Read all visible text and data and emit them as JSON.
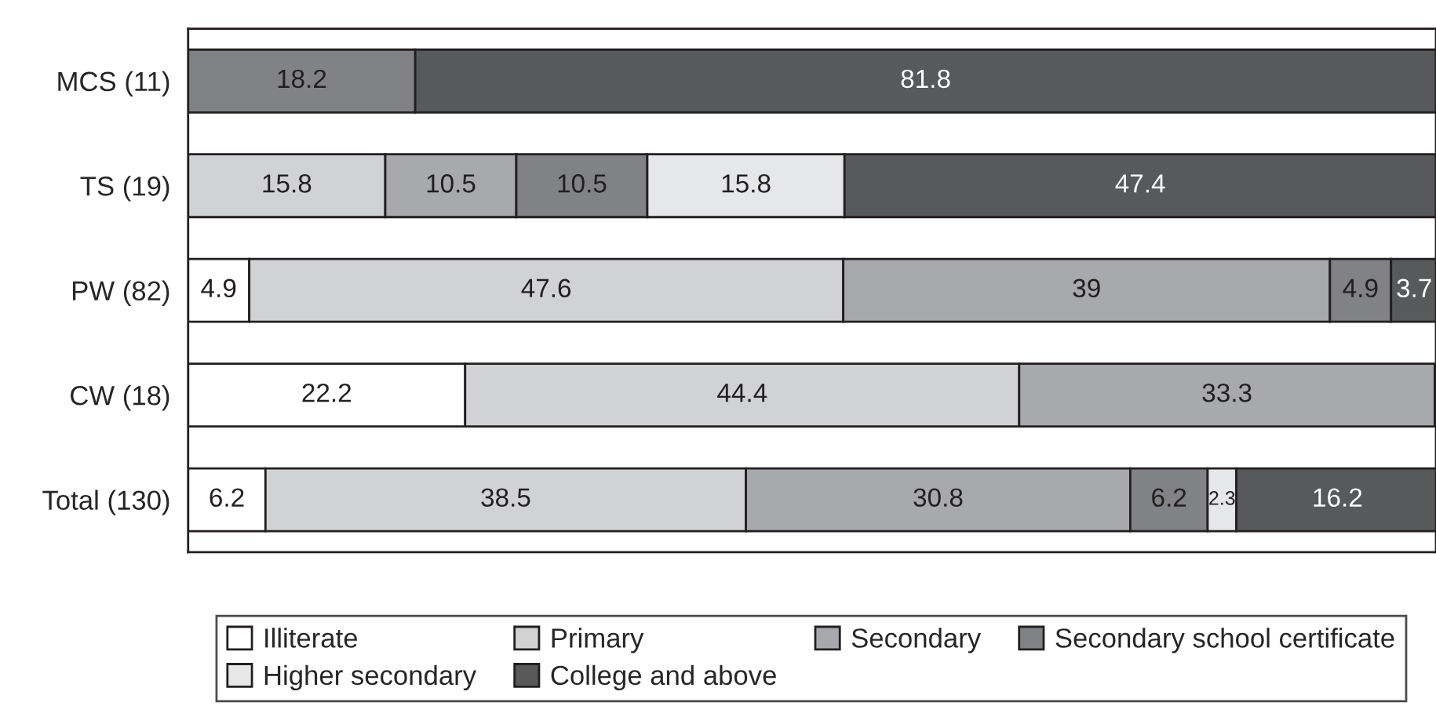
{
  "chart_data": {
    "type": "bar",
    "orientation": "horizontal",
    "stacked": true,
    "data_labels": true,
    "tick_labels": "y",
    "legend": "bottom",
    "xlim": [
      0,
      100
    ],
    "categories": [
      "MCS (11)",
      "TS (19)",
      "PW (82)",
      "CW (18)",
      "Total (130)"
    ],
    "series": [
      {
        "name": "Illiterate",
        "color": "#ffffff",
        "values": [
          null,
          null,
          4.9,
          22.2,
          6.2
        ]
      },
      {
        "name": "Primary",
        "color": "#d1d2d4",
        "values": [
          null,
          15.8,
          47.6,
          44.4,
          38.5
        ]
      },
      {
        "name": "Secondary",
        "color": "#a7a9ac",
        "values": [
          null,
          10.5,
          39,
          33.3,
          30.8
        ]
      },
      {
        "name": "Secondary school certificate",
        "color": "#808285",
        "values": [
          18.2,
          10.5,
          4.9,
          null,
          6.2
        ]
      },
      {
        "name": "Higher secondary",
        "color": "#e6e7e8",
        "values": [
          null,
          15.8,
          null,
          null,
          2.3
        ]
      },
      {
        "name": "College and above",
        "color": "#58595b",
        "values": [
          81.8,
          47.4,
          3.7,
          null,
          16.2
        ]
      }
    ]
  }
}
